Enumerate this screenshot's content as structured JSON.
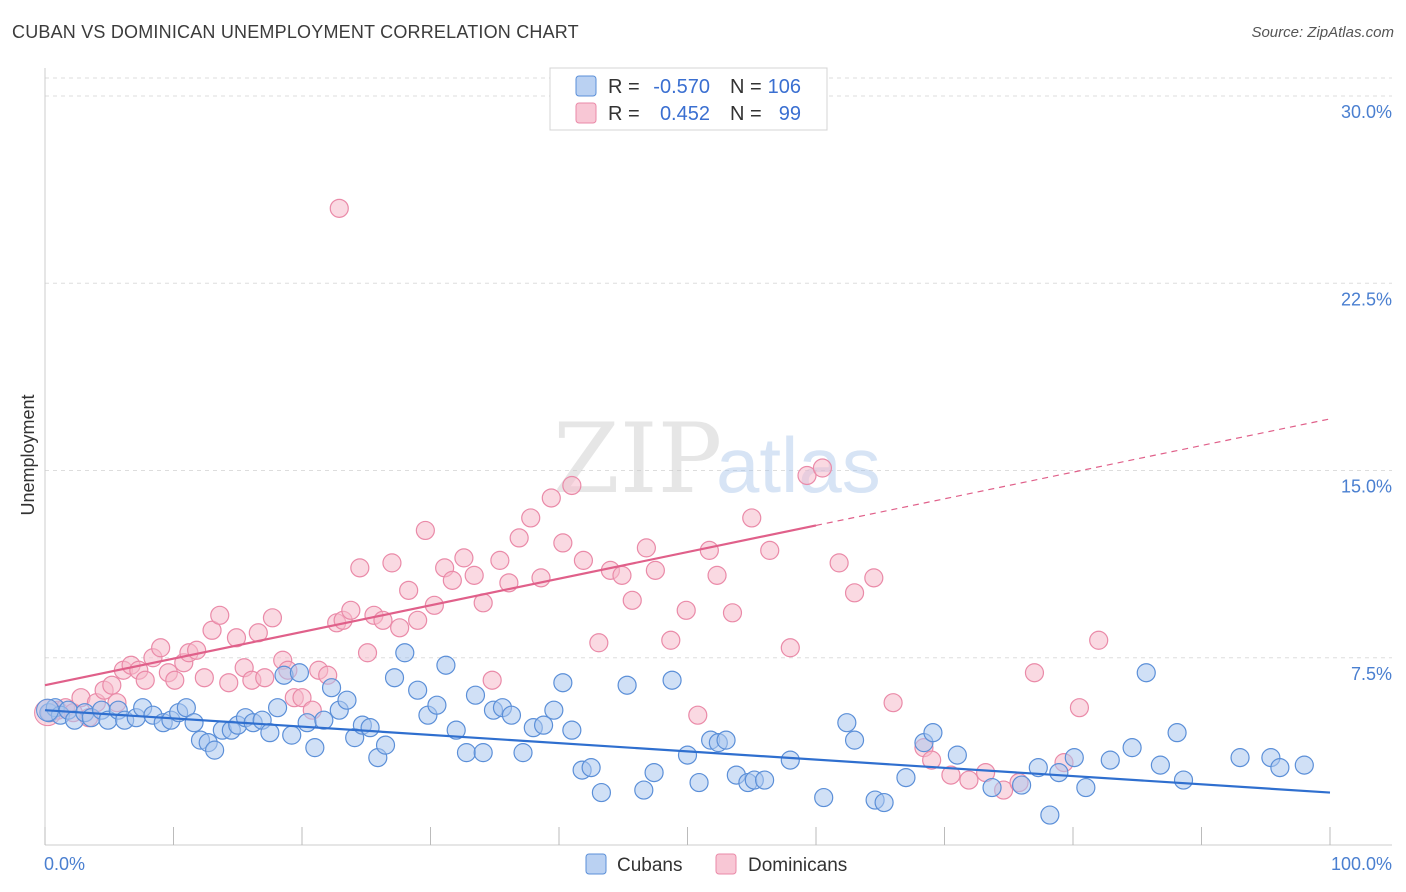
{
  "title": "CUBAN VS DOMINICAN UNEMPLOYMENT CORRELATION CHART",
  "source": "Source: ZipAtlas.com",
  "colors": {
    "cubans_fill": "#a9c6ef",
    "cubans_stroke": "#5b8fd8",
    "cubans_line": "#2f6fcf",
    "dominicans_fill": "#f6b9cb",
    "dominicans_stroke": "#ea8aa8",
    "dominicans_line": "#e0608a",
    "axis_text": "#4a7fd0",
    "grid": "#dddddd"
  },
  "legend": {
    "r_label": "R =",
    "n_label": "N =",
    "rows": [
      {
        "series": "Cubans",
        "r": "-0.570",
        "n": "106"
      },
      {
        "series": "Dominicans",
        "r": "0.452",
        "n": "99"
      }
    ]
  },
  "watermark": {
    "zip": "ZIP",
    "atlas": "atlas"
  },
  "chart_data": {
    "type": "scatter",
    "title": "CUBAN VS DOMINICAN UNEMPLOYMENT CORRELATION CHART",
    "xlabel": "",
    "ylabel": "Unemployment",
    "xlim": [
      0,
      100
    ],
    "ylim": [
      0,
      30
    ],
    "x_tick_labels": [
      "0.0%",
      "100.0%"
    ],
    "y_ticks": [
      7.5,
      15.0,
      22.5,
      30.0
    ],
    "y_tick_labels": [
      "7.5%",
      "15.0%",
      "22.5%",
      "30.0%"
    ],
    "grid": "horizontal dashed",
    "legend_position": "top-center",
    "series": [
      {
        "name": "Cubans",
        "r": -0.57,
        "n": 106,
        "trend": {
          "x": [
            0,
            100
          ],
          "y": [
            5.4,
            2.1
          ]
        },
        "points": [
          [
            0.3,
            5.3
          ],
          [
            0.8,
            5.5
          ],
          [
            1.2,
            5.2
          ],
          [
            1.8,
            5.4
          ],
          [
            2.3,
            5.0
          ],
          [
            3.1,
            5.3
          ],
          [
            3.6,
            5.1
          ],
          [
            4.4,
            5.4
          ],
          [
            4.9,
            5.0
          ],
          [
            5.7,
            5.4
          ],
          [
            6.2,
            5.0
          ],
          [
            7.1,
            5.1
          ],
          [
            7.6,
            5.5
          ],
          [
            8.4,
            5.2
          ],
          [
            9.2,
            4.9
          ],
          [
            9.8,
            5.0
          ],
          [
            10.4,
            5.3
          ],
          [
            11.0,
            5.5
          ],
          [
            11.6,
            4.9
          ],
          [
            12.1,
            4.2
          ],
          [
            12.7,
            4.1
          ],
          [
            13.2,
            3.8
          ],
          [
            13.8,
            4.6
          ],
          [
            14.5,
            4.6
          ],
          [
            15.0,
            4.8
          ],
          [
            15.6,
            5.1
          ],
          [
            16.2,
            4.9
          ],
          [
            16.9,
            5.0
          ],
          [
            17.5,
            4.5
          ],
          [
            18.1,
            5.5
          ],
          [
            18.6,
            6.8
          ],
          [
            19.2,
            4.4
          ],
          [
            19.8,
            6.9
          ],
          [
            20.4,
            4.9
          ],
          [
            21.0,
            3.9
          ],
          [
            21.7,
            5.0
          ],
          [
            22.3,
            6.3
          ],
          [
            22.9,
            5.4
          ],
          [
            23.5,
            5.8
          ],
          [
            24.1,
            4.3
          ],
          [
            24.7,
            4.8
          ],
          [
            25.3,
            4.7
          ],
          [
            25.9,
            3.5
          ],
          [
            26.5,
            4.0
          ],
          [
            27.2,
            6.7
          ],
          [
            28.0,
            7.7
          ],
          [
            29.0,
            6.2
          ],
          [
            29.8,
            5.2
          ],
          [
            30.5,
            5.6
          ],
          [
            31.2,
            7.2
          ],
          [
            32.0,
            4.6
          ],
          [
            32.8,
            3.7
          ],
          [
            33.5,
            6.0
          ],
          [
            34.1,
            3.7
          ],
          [
            34.9,
            5.4
          ],
          [
            35.6,
            5.5
          ],
          [
            36.3,
            5.2
          ],
          [
            37.2,
            3.7
          ],
          [
            38.0,
            4.7
          ],
          [
            38.8,
            4.8
          ],
          [
            39.6,
            5.4
          ],
          [
            40.3,
            6.5
          ],
          [
            41.0,
            4.6
          ],
          [
            41.8,
            3.0
          ],
          [
            42.5,
            3.1
          ],
          [
            43.3,
            2.1
          ],
          [
            45.3,
            6.4
          ],
          [
            46.6,
            2.2
          ],
          [
            47.4,
            2.9
          ],
          [
            48.8,
            6.6
          ],
          [
            50.0,
            3.6
          ],
          [
            50.9,
            2.5
          ],
          [
            51.8,
            4.2
          ],
          [
            52.4,
            4.1
          ],
          [
            53.0,
            4.2
          ],
          [
            53.8,
            2.8
          ],
          [
            54.7,
            2.5
          ],
          [
            55.2,
            2.6
          ],
          [
            56.0,
            2.6
          ],
          [
            58.0,
            3.4
          ],
          [
            60.6,
            1.9
          ],
          [
            62.4,
            4.9
          ],
          [
            63.0,
            4.2
          ],
          [
            64.6,
            1.8
          ],
          [
            65.3,
            1.7
          ],
          [
            67.0,
            2.7
          ],
          [
            68.4,
            4.1
          ],
          [
            69.1,
            4.5
          ],
          [
            71.0,
            3.6
          ],
          [
            73.7,
            2.3
          ],
          [
            76.0,
            2.4
          ],
          [
            77.3,
            3.1
          ],
          [
            78.2,
            1.2
          ],
          [
            78.9,
            2.9
          ],
          [
            80.1,
            3.5
          ],
          [
            81.0,
            2.3
          ],
          [
            82.9,
            3.4
          ],
          [
            84.6,
            3.9
          ],
          [
            85.7,
            6.9
          ],
          [
            86.8,
            3.2
          ],
          [
            88.1,
            4.5
          ],
          [
            88.6,
            2.6
          ],
          [
            93.0,
            3.5
          ],
          [
            95.4,
            3.5
          ],
          [
            96.1,
            3.1
          ],
          [
            98.0,
            3.2
          ]
        ]
      },
      {
        "name": "Dominicans",
        "r": 0.452,
        "n": 99,
        "trend": {
          "x": [
            0,
            60
          ],
          "y": [
            6.4,
            12.8
          ]
        },
        "points": [
          [
            0.4,
            5.3
          ],
          [
            1.0,
            5.4
          ],
          [
            1.6,
            5.5
          ],
          [
            2.2,
            5.3
          ],
          [
            2.8,
            5.9
          ],
          [
            3.4,
            5.1
          ],
          [
            4.0,
            5.7
          ],
          [
            4.6,
            6.2
          ],
          [
            5.2,
            6.4
          ],
          [
            5.6,
            5.7
          ],
          [
            6.1,
            7.0
          ],
          [
            6.7,
            7.2
          ],
          [
            7.3,
            7.0
          ],
          [
            7.8,
            6.6
          ],
          [
            8.4,
            7.5
          ],
          [
            9.0,
            7.9
          ],
          [
            9.6,
            6.9
          ],
          [
            10.1,
            6.6
          ],
          [
            10.8,
            7.3
          ],
          [
            11.2,
            7.7
          ],
          [
            11.8,
            7.8
          ],
          [
            12.4,
            6.7
          ],
          [
            13.0,
            8.6
          ],
          [
            13.6,
            9.2
          ],
          [
            14.3,
            6.5
          ],
          [
            14.9,
            8.3
          ],
          [
            15.5,
            7.1
          ],
          [
            16.1,
            6.6
          ],
          [
            16.6,
            8.5
          ],
          [
            17.1,
            6.7
          ],
          [
            17.7,
            9.1
          ],
          [
            18.5,
            7.4
          ],
          [
            18.9,
            7.0
          ],
          [
            19.4,
            5.9
          ],
          [
            20.0,
            5.9
          ],
          [
            20.8,
            5.4
          ],
          [
            21.3,
            7.0
          ],
          [
            22.0,
            6.8
          ],
          [
            22.7,
            8.9
          ],
          [
            23.2,
            9.0
          ],
          [
            23.8,
            9.4
          ],
          [
            24.5,
            11.1
          ],
          [
            25.1,
            7.7
          ],
          [
            25.6,
            9.2
          ],
          [
            26.3,
            9.0
          ],
          [
            27.0,
            11.3
          ],
          [
            27.6,
            8.7
          ],
          [
            28.3,
            10.2
          ],
          [
            29.0,
            9.0
          ],
          [
            29.6,
            12.6
          ],
          [
            30.3,
            9.6
          ],
          [
            31.1,
            11.1
          ],
          [
            31.7,
            10.6
          ],
          [
            32.6,
            11.5
          ],
          [
            33.4,
            10.8
          ],
          [
            34.1,
            9.7
          ],
          [
            34.8,
            6.6
          ],
          [
            35.4,
            11.4
          ],
          [
            36.1,
            10.5
          ],
          [
            36.9,
            12.3
          ],
          [
            37.8,
            13.1
          ],
          [
            38.6,
            10.7
          ],
          [
            39.4,
            13.9
          ],
          [
            40.3,
            12.1
          ],
          [
            41.0,
            14.4
          ],
          [
            41.9,
            11.4
          ],
          [
            43.1,
            8.1
          ],
          [
            44.0,
            11.0
          ],
          [
            44.9,
            10.8
          ],
          [
            45.7,
            9.8
          ],
          [
            46.8,
            11.9
          ],
          [
            47.5,
            11.0
          ],
          [
            48.7,
            8.2
          ],
          [
            49.9,
            9.4
          ],
          [
            50.8,
            5.2
          ],
          [
            51.7,
            11.8
          ],
          [
            52.3,
            10.8
          ],
          [
            53.5,
            9.3
          ],
          [
            55.0,
            13.1
          ],
          [
            56.4,
            11.8
          ],
          [
            58.0,
            7.9
          ],
          [
            59.3,
            14.8
          ],
          [
            60.5,
            15.1
          ],
          [
            61.8,
            11.3
          ],
          [
            63.0,
            10.1
          ],
          [
            64.5,
            10.7
          ],
          [
            66.0,
            5.7
          ],
          [
            68.4,
            3.9
          ],
          [
            69.0,
            3.4
          ],
          [
            70.5,
            2.8
          ],
          [
            71.9,
            2.6
          ],
          [
            73.2,
            2.9
          ],
          [
            74.6,
            2.2
          ],
          [
            75.8,
            2.5
          ],
          [
            77.0,
            6.9
          ],
          [
            79.3,
            3.3
          ],
          [
            80.5,
            5.5
          ],
          [
            82.0,
            8.2
          ],
          [
            22.9,
            25.5
          ]
        ]
      }
    ]
  },
  "bottom_legend": [
    "Cubans",
    "Dominicans"
  ]
}
